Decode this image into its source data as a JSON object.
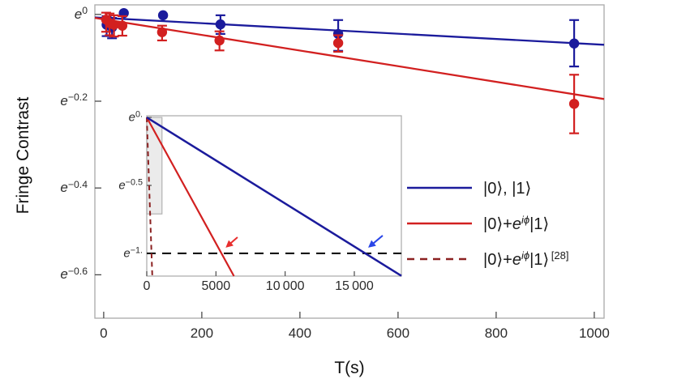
{
  "figure": {
    "ylabel": "Fringe Contrast",
    "xlabel": "T(s)"
  },
  "colors": {
    "blue": "#1b1b9c",
    "red": "#d22020",
    "darkred": "#8b2121",
    "arrow_blue": "#2a46e8",
    "arrow_red": "#e82e2e",
    "threshold_black": "#111111",
    "frame": "#a9a9a9",
    "tick": "#4a4a4a",
    "highlight_fill": "#ebebeb",
    "highlight_stroke": "#b3b3b3"
  },
  "legend": {
    "items": [
      {
        "label_text": "|0⟩, |1⟩",
        "color_key": "blue",
        "dashed": false,
        "segments": [
          {
            "t": "|0⟩, |1⟩"
          }
        ]
      },
      {
        "label_text": "|0⟩+e^iϕ|1⟩",
        "color_key": "red",
        "dashed": false,
        "segments": [
          {
            "t": "|0⟩+"
          },
          {
            "t": "e",
            "i": 1
          },
          {
            "t": "iϕ",
            "sup": 1,
            "i": 1
          },
          {
            "t": "|1⟩"
          }
        ]
      },
      {
        "label_text": "|0⟩+e^iϕ|1⟩ ^[28]",
        "color_key": "darkred",
        "dashed": true,
        "segments": [
          {
            "t": "|0⟩+"
          },
          {
            "t": "e",
            "i": 1
          },
          {
            "t": "iϕ",
            "sup": 1,
            "i": 1
          },
          {
            "t": "|1⟩"
          },
          {
            "t": " [28]",
            "sup": 1
          }
        ]
      }
    ]
  },
  "chart_data": [
    {
      "type": "scatter",
      "title": "",
      "xlabel": "T(s)",
      "ylabel": "Fringe Contrast",
      "y_scale": "ln(contrast), labels shown as e^x",
      "xlim": [
        -18,
        1020
      ],
      "ylim_ln": [
        -0.7,
        0.022
      ],
      "grid": false,
      "x_ticks": [
        0,
        200,
        400,
        600,
        800,
        1000
      ],
      "x_tick_labels": [
        "0",
        "200",
        "400",
        "600",
        "800",
        "1000"
      ],
      "y_ticks_ln": [
        0,
        -0.2,
        -0.4,
        -0.6
      ],
      "y_tick_exponents": [
        "0",
        "−0.2",
        "−0.4",
        "−0.6"
      ],
      "series": [
        {
          "name": "|0⟩, |1⟩",
          "color_key": "blue",
          "points": [
            {
              "T": 6,
              "lnC": -0.024,
              "err": [
                -0.05,
                -0.004
              ]
            },
            {
              "T": 17,
              "lnC": -0.03,
              "err": [
                -0.055,
                -0.008
              ]
            },
            {
              "T": 41,
              "lnC": 0.003,
              "err": null
            },
            {
              "T": 121,
              "lnC": -0.002,
              "err": null
            },
            {
              "T": 238,
              "lnC": -0.023,
              "err": [
                -0.045,
                -0.002
              ]
            },
            {
              "T": 478,
              "lnC": -0.045,
              "err": [
                -0.084,
                -0.013
              ]
            },
            {
              "T": 959,
              "lnC": -0.067,
              "err": [
                -0.12,
                -0.013
              ]
            }
          ],
          "fit_line": {
            "T": [
              -18,
              1020
            ],
            "lnC": [
              -0.007,
              -0.07
            ]
          }
        },
        {
          "name": "|0⟩+e^iϕ|1⟩",
          "color_key": "red",
          "points": [
            {
              "T": 5,
              "lnC": -0.012,
              "err": [
                -0.04,
                0.004
              ]
            },
            {
              "T": 12,
              "lnC": -0.02,
              "err": [
                -0.048,
                0.002
              ]
            },
            {
              "T": 21,
              "lnC": -0.024,
              "err": [
                -0.051,
                -0.002
              ]
            },
            {
              "T": 38,
              "lnC": -0.026,
              "err": [
                -0.049,
                -0.004
              ]
            },
            {
              "T": 119,
              "lnC": -0.041,
              "err": [
                -0.06,
                -0.026
              ]
            },
            {
              "T": 236,
              "lnC": -0.06,
              "err": [
                -0.083,
                -0.039
              ]
            },
            {
              "T": 478,
              "lnC": -0.066,
              "err": [
                -0.086,
                -0.048
              ]
            },
            {
              "T": 959,
              "lnC": -0.206,
              "err": [
                -0.274,
                -0.139
              ]
            }
          ],
          "fit_line": {
            "T": [
              -18,
              1020
            ],
            "lnC": [
              -0.008,
              -0.195
            ]
          }
        }
      ]
    },
    {
      "type": "line",
      "title": "inset: extrapolated decay to 1/e",
      "xlim": [
        0,
        18400
      ],
      "ylim_ln": [
        -1.167,
        0.012
      ],
      "grid": false,
      "x_ticks": [
        0,
        5000,
        10000,
        15000
      ],
      "x_tick_labels": [
        "0",
        "5000",
        "10 000",
        "15 000"
      ],
      "y_ticks_ln": [
        0,
        -0.5,
        -1
      ],
      "y_tick_exponents": [
        "0.",
        "−0.5",
        "−1."
      ],
      "lines": [
        {
          "name": "threshold-1-over-e",
          "color_key": "threshold_black",
          "dashed": true,
          "dash": "11 8",
          "width": 2.2,
          "horizontal_lnC": -1
        },
        {
          "name": "ref-28-extrapolation",
          "color_key": "darkred",
          "dashed": true,
          "dash": "6 4.5",
          "width": 2.0,
          "from": {
            "T": 0,
            "lnC": 0
          },
          "to": {
            "T": 400,
            "lnC": -1.167
          }
        },
        {
          "name": "superposition-extrapolation",
          "color_key": "red",
          "dashed": false,
          "width": 2.2,
          "from": {
            "T": 0,
            "lnC": 0
          },
          "to": {
            "T": 6300,
            "lnC": -1.167
          }
        },
        {
          "name": "basis-states-extrapolation",
          "color_key": "blue",
          "dashed": false,
          "width": 2.5,
          "from": {
            "T": 0,
            "lnC": 0
          },
          "to": {
            "T": 18400,
            "lnC": -1.165
          }
        }
      ],
      "highlight_rect": {
        "T": [
          0,
          1100
        ],
        "lnC": [
          0,
          -0.71
        ]
      },
      "arrows": [
        {
          "name": "red-arrow",
          "color_key": "arrow_red",
          "tail": {
            "T": 6560,
            "lnC": -0.881
          },
          "tip": {
            "T": 5700,
            "lnC": -0.958
          }
        },
        {
          "name": "blue-arrow",
          "color_key": "arrow_blue",
          "tail": {
            "T": 17050,
            "lnC": -0.869
          },
          "tip": {
            "T": 16000,
            "lnC": -0.958
          }
        }
      ]
    }
  ]
}
